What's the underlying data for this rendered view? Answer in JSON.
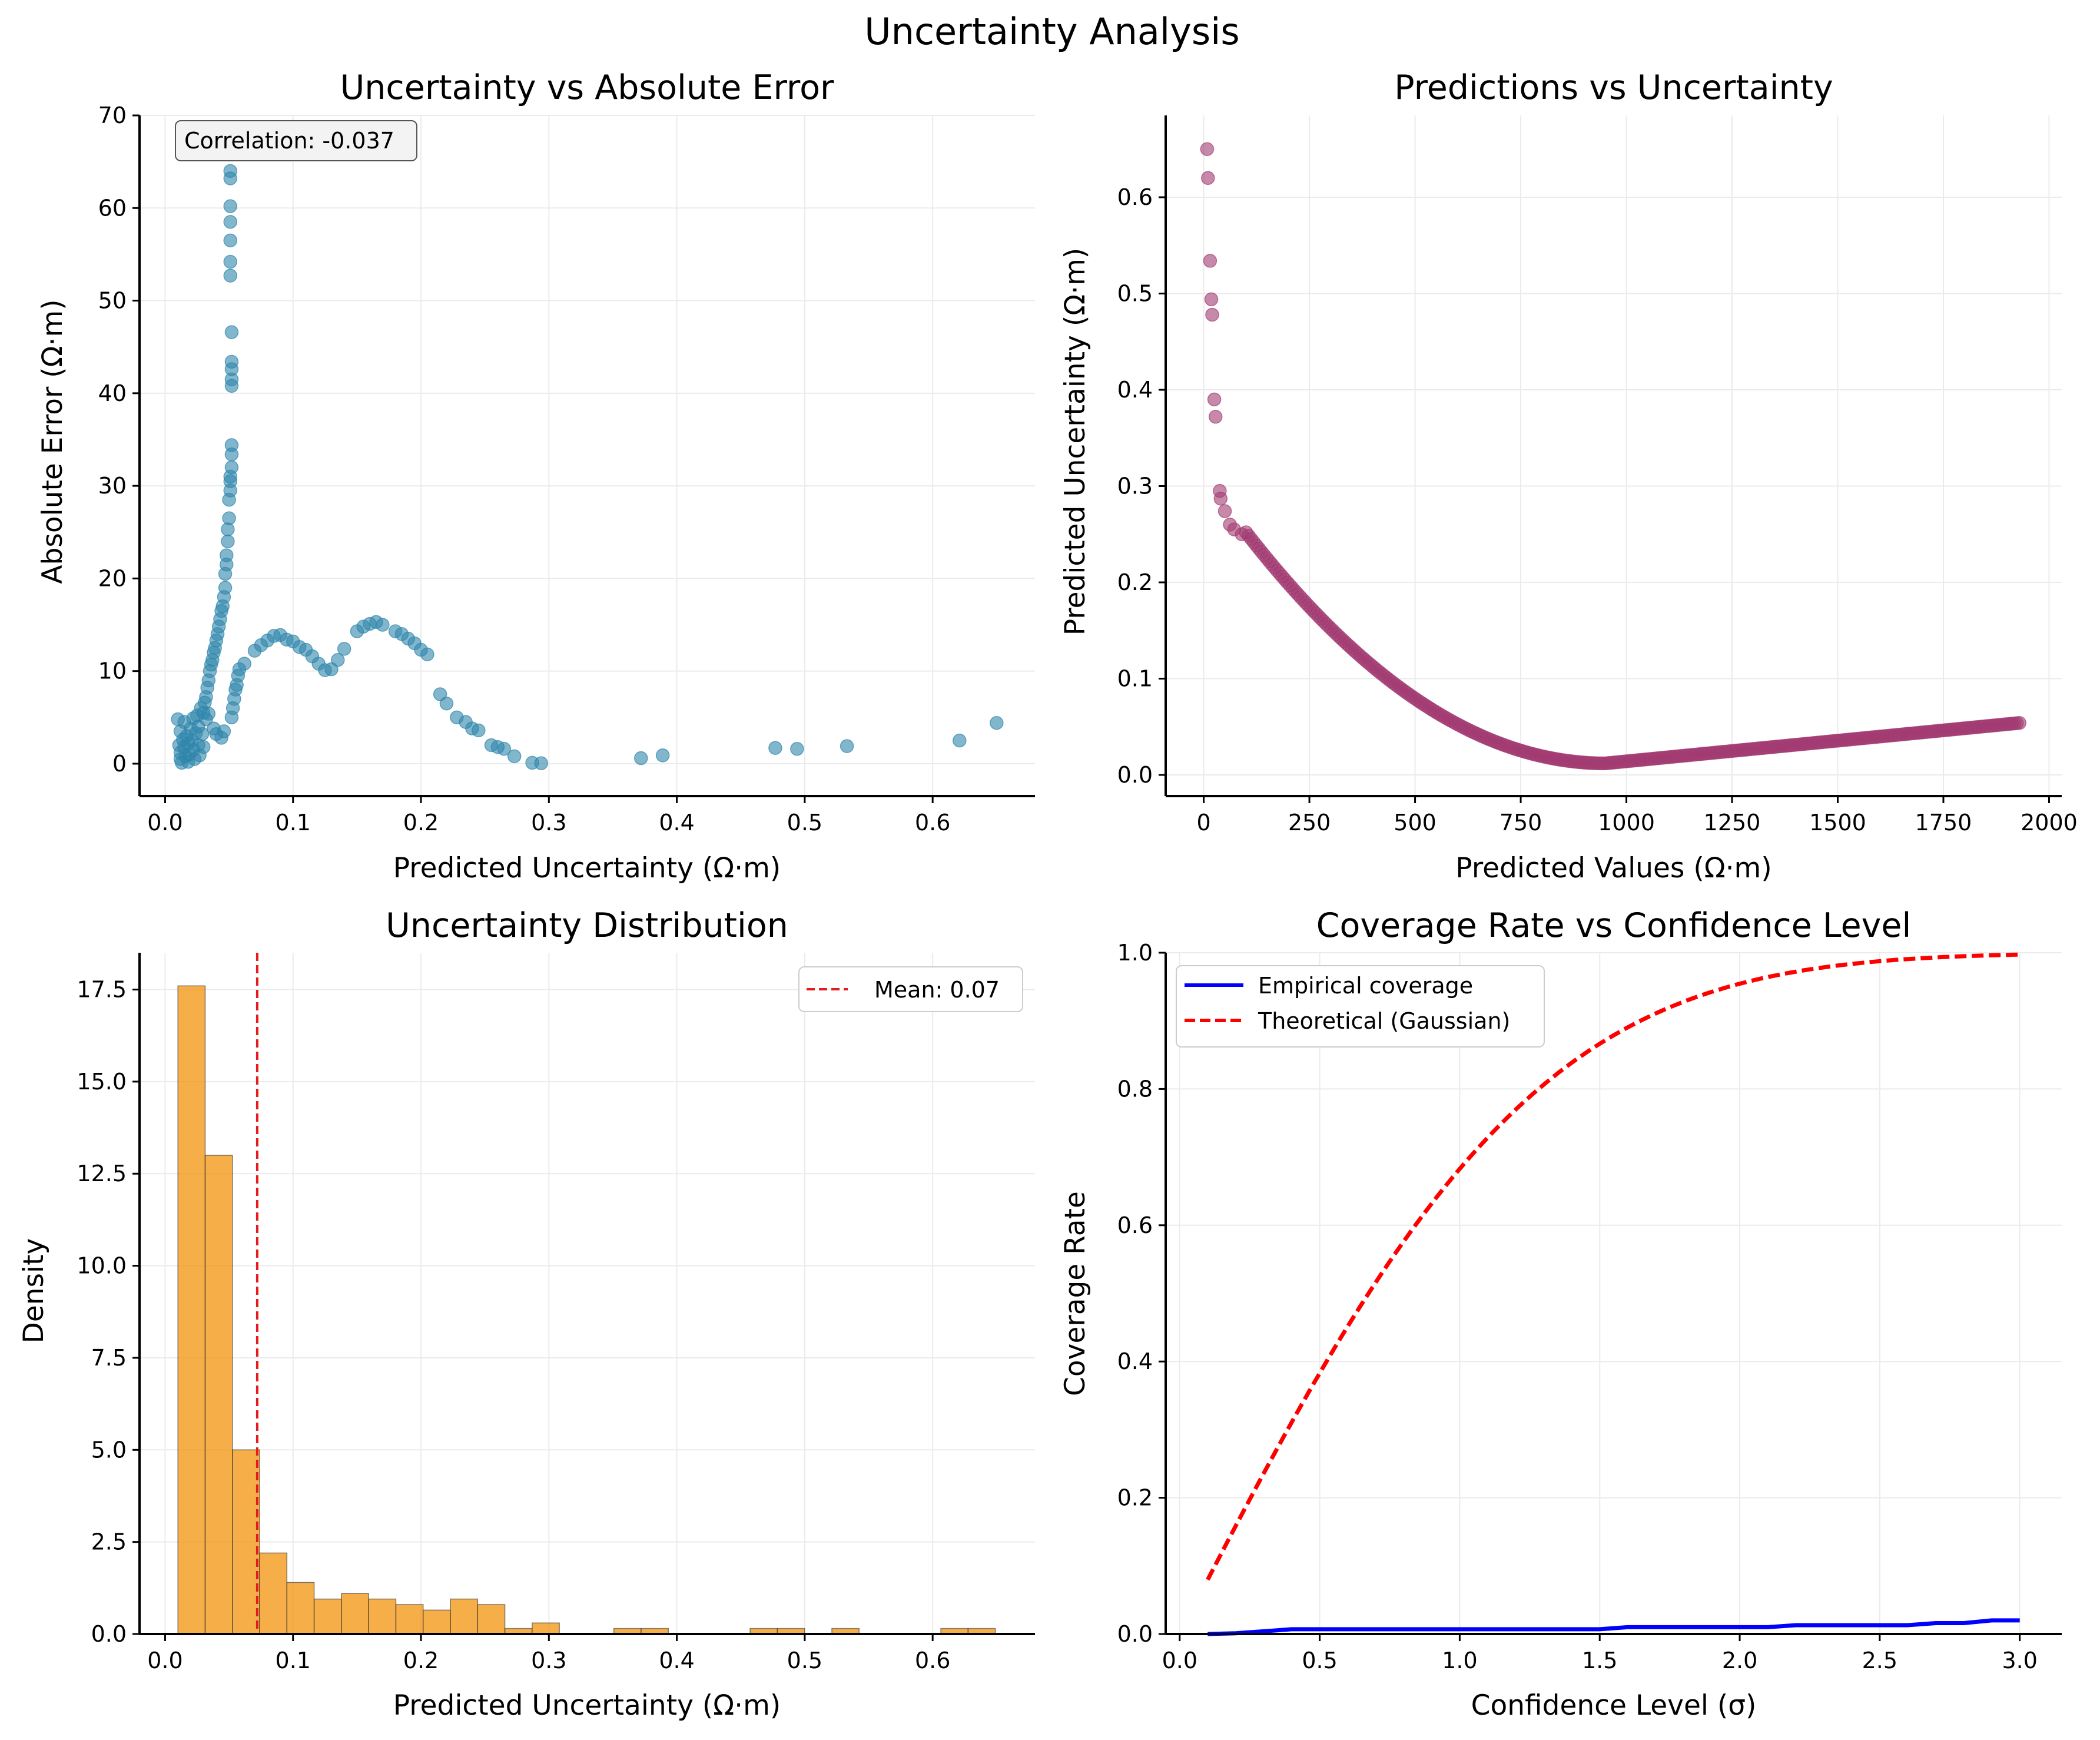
{
  "figure": {
    "title": "Uncertainty Analysis"
  },
  "colors": {
    "scatter_error": "#2e86ab",
    "scatter_pred": "#a23b72",
    "histogram": "#f18f01",
    "mean_line": "#e41a1c",
    "empirical": "#0000ff",
    "theoretical": "#ff0000"
  },
  "chart_data": [
    {
      "id": "error",
      "type": "scatter",
      "title": "Uncertainty vs Absolute Error",
      "xlabel": "Predicted Uncertainty (Ω·m)",
      "ylabel": "Absolute Error (Ω·m)",
      "xlim": [
        -0.02,
        0.68
      ],
      "ylim": [
        -3.5,
        70
      ],
      "xticks": [
        "0.0",
        "0.1",
        "0.2",
        "0.3",
        "0.4",
        "0.5",
        "0.6"
      ],
      "yticks": [
        "0",
        "10",
        "20",
        "30",
        "40",
        "50",
        "60",
        "70"
      ],
      "grid": true,
      "annotation": "Correlation: -0.037",
      "points": [
        [
          0.01,
          4.8
        ],
        [
          0.012,
          3.5
        ],
        [
          0.011,
          2.0
        ],
        [
          0.012,
          0.5
        ],
        [
          0.012,
          1.2
        ],
        [
          0.013,
          0.1
        ],
        [
          0.014,
          2.6
        ],
        [
          0.015,
          4.5
        ],
        [
          0.015,
          1.8
        ],
        [
          0.016,
          0.8
        ],
        [
          0.017,
          3.0
        ],
        [
          0.018,
          2.2
        ],
        [
          0.018,
          0.2
        ],
        [
          0.019,
          1.0
        ],
        [
          0.02,
          3.8
        ],
        [
          0.021,
          2.5
        ],
        [
          0.022,
          4.9
        ],
        [
          0.022,
          1.5
        ],
        [
          0.023,
          0.5
        ],
        [
          0.024,
          3.3
        ],
        [
          0.025,
          5.2
        ],
        [
          0.026,
          2.0
        ],
        [
          0.026,
          4.0
        ],
        [
          0.027,
          0.9
        ],
        [
          0.028,
          6.0
        ],
        [
          0.029,
          3.2
        ],
        [
          0.03,
          5.5
        ],
        [
          0.03,
          1.8
        ],
        [
          0.031,
          6.6
        ],
        [
          0.032,
          4.8
        ],
        [
          0.032,
          7.2
        ],
        [
          0.033,
          8.2
        ],
        [
          0.034,
          9.0
        ],
        [
          0.034,
          5.4
        ],
        [
          0.035,
          10.0
        ],
        [
          0.036,
          10.7
        ],
        [
          0.037,
          11.2
        ],
        [
          0.038,
          3.8
        ],
        [
          0.038,
          12.0
        ],
        [
          0.039,
          12.5
        ],
        [
          0.04,
          13.3
        ],
        [
          0.04,
          3.2
        ],
        [
          0.041,
          14.0
        ],
        [
          0.042,
          14.8
        ],
        [
          0.043,
          15.6
        ],
        [
          0.044,
          16.5
        ],
        [
          0.044,
          2.8
        ],
        [
          0.045,
          17.0
        ],
        [
          0.046,
          18.0
        ],
        [
          0.046,
          3.5
        ],
        [
          0.047,
          19.0
        ],
        [
          0.047,
          20.5
        ],
        [
          0.048,
          21.5
        ],
        [
          0.048,
          22.5
        ],
        [
          0.049,
          24.0
        ],
        [
          0.049,
          25.3
        ],
        [
          0.05,
          26.5
        ],
        [
          0.05,
          28.5
        ],
        [
          0.051,
          29.5
        ],
        [
          0.051,
          30.5
        ],
        [
          0.051,
          31.0
        ],
        [
          0.052,
          32.0
        ],
        [
          0.052,
          33.4
        ],
        [
          0.052,
          34.4
        ],
        [
          0.052,
          40.8
        ],
        [
          0.052,
          41.5
        ],
        [
          0.052,
          42.6
        ],
        [
          0.052,
          43.4
        ],
        [
          0.052,
          46.6
        ],
        [
          0.051,
          52.7
        ],
        [
          0.051,
          54.2
        ],
        [
          0.051,
          56.5
        ],
        [
          0.051,
          58.5
        ],
        [
          0.051,
          60.2
        ],
        [
          0.051,
          63.2
        ],
        [
          0.051,
          64.0
        ],
        [
          0.052,
          5.0
        ],
        [
          0.053,
          6.0
        ],
        [
          0.054,
          7.0
        ],
        [
          0.055,
          8.0
        ],
        [
          0.056,
          8.5
        ],
        [
          0.057,
          9.5
        ],
        [
          0.058,
          10.2
        ],
        [
          0.062,
          10.8
        ],
        [
          0.07,
          12.2
        ],
        [
          0.075,
          12.8
        ],
        [
          0.08,
          13.3
        ],
        [
          0.085,
          13.8
        ],
        [
          0.09,
          13.9
        ],
        [
          0.095,
          13.4
        ],
        [
          0.1,
          13.2
        ],
        [
          0.105,
          12.6
        ],
        [
          0.11,
          12.3
        ],
        [
          0.115,
          11.6
        ],
        [
          0.12,
          10.8
        ],
        [
          0.125,
          10.1
        ],
        [
          0.13,
          10.2
        ],
        [
          0.135,
          11.2
        ],
        [
          0.14,
          12.4
        ],
        [
          0.15,
          14.3
        ],
        [
          0.155,
          14.8
        ],
        [
          0.16,
          15.1
        ],
        [
          0.165,
          15.3
        ],
        [
          0.17,
          15.0
        ],
        [
          0.18,
          14.3
        ],
        [
          0.185,
          14.0
        ],
        [
          0.19,
          13.5
        ],
        [
          0.195,
          13.0
        ],
        [
          0.2,
          12.3
        ],
        [
          0.205,
          11.8
        ],
        [
          0.215,
          7.5
        ],
        [
          0.22,
          6.5
        ],
        [
          0.228,
          5.0
        ],
        [
          0.235,
          4.5
        ],
        [
          0.24,
          3.8
        ],
        [
          0.245,
          3.6
        ],
        [
          0.255,
          2.0
        ],
        [
          0.26,
          1.8
        ],
        [
          0.265,
          1.6
        ],
        [
          0.273,
          0.8
        ],
        [
          0.287,
          0.1
        ],
        [
          0.294,
          0.05
        ],
        [
          0.372,
          0.6
        ],
        [
          0.389,
          0.9
        ],
        [
          0.477,
          1.7
        ],
        [
          0.494,
          1.6
        ],
        [
          0.533,
          1.9
        ],
        [
          0.621,
          2.5
        ],
        [
          0.65,
          4.4
        ]
      ]
    },
    {
      "id": "pred",
      "type": "scatter",
      "title": "Predictions vs Uncertainty",
      "xlabel": "Predicted Values (Ω·m)",
      "ylabel": "Predicted Uncertainty (Ω·m)",
      "xlim": [
        -90,
        2030
      ],
      "ylim": [
        -0.022,
        0.685
      ],
      "xticks": [
        "0",
        "250",
        "500",
        "750",
        "1000",
        "1250",
        "1500",
        "1750",
        "2000"
      ],
      "yticks": [
        "0.0",
        "0.1",
        "0.2",
        "0.3",
        "0.4",
        "0.5",
        "0.6"
      ],
      "grid": true,
      "points": [
        [
          8,
          0.65
        ],
        [
          10,
          0.62
        ],
        [
          15,
          0.534
        ],
        [
          18,
          0.494
        ],
        [
          20,
          0.478
        ],
        [
          25,
          0.39
        ],
        [
          28,
          0.372
        ],
        [
          38,
          0.295
        ],
        [
          40,
          0.287
        ],
        [
          50,
          0.274
        ],
        [
          62,
          0.26
        ],
        [
          72,
          0.255
        ],
        [
          90,
          0.25
        ]
      ],
      "curve_points": 300,
      "curve_x_range": [
        100,
        1930
      ]
    },
    {
      "id": "hist",
      "type": "bar",
      "title": "Uncertainty Distribution",
      "xlabel": "Predicted Uncertainty (Ω·m)",
      "ylabel": "Density",
      "xlim": [
        -0.02,
        0.68
      ],
      "ylim": [
        0,
        18.5
      ],
      "xticks": [
        "0.0",
        "0.1",
        "0.2",
        "0.3",
        "0.4",
        "0.5",
        "0.6"
      ],
      "yticks": [
        "0.0",
        "2.5",
        "5.0",
        "7.5",
        "10.0",
        "12.5",
        "15.0",
        "17.5"
      ],
      "grid": true,
      "bin_start": 0.01,
      "bin_width": 0.0213,
      "values": [
        17.6,
        13.0,
        5.0,
        2.2,
        1.4,
        0.95,
        1.1,
        0.95,
        0.8,
        0.65,
        0.95,
        0.8,
        0.15,
        0.3,
        0,
        0,
        0.15,
        0.15,
        0,
        0,
        0,
        0.15,
        0.15,
        0,
        0.15,
        0,
        0,
        0,
        0.15,
        0.15
      ],
      "mean_value": 0.072,
      "legend": [
        "Mean: 0.07"
      ]
    },
    {
      "id": "cov",
      "type": "line",
      "title": "Coverage Rate vs Confidence Level",
      "xlabel": "Confidence Level (σ)",
      "ylabel": "Coverage Rate",
      "xlim": [
        -0.05,
        3.15
      ],
      "ylim": [
        0,
        1.0
      ],
      "xticks": [
        "0.0",
        "0.5",
        "1.0",
        "1.5",
        "2.0",
        "2.5",
        "3.0"
      ],
      "yticks": [
        "0.0",
        "0.2",
        "0.4",
        "0.6",
        "0.8",
        "1.0"
      ],
      "grid": true,
      "legend": [
        "Empirical coverage",
        "Theoretical (Gaussian)"
      ],
      "legend_position": "upper left",
      "x_range": [
        0.1,
        3.0
      ],
      "empirical": [
        [
          0.1,
          0.0
        ],
        [
          0.2,
          0.001
        ],
        [
          0.3,
          0.004
        ],
        [
          0.4,
          0.007
        ],
        [
          0.5,
          0.007
        ],
        [
          1.5,
          0.007
        ],
        [
          1.6,
          0.01
        ],
        [
          2.1,
          0.01
        ],
        [
          2.2,
          0.013
        ],
        [
          2.6,
          0.013
        ],
        [
          2.7,
          0.016
        ],
        [
          2.8,
          0.016
        ],
        [
          2.9,
          0.02
        ],
        [
          3.0,
          0.02
        ]
      ],
      "theoretical": "erf(x / sqrt(2))"
    }
  ]
}
